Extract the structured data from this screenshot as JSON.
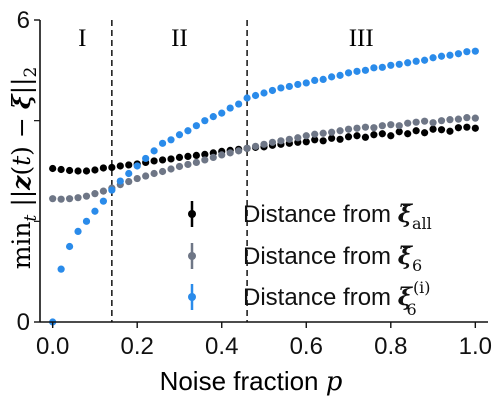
{
  "chart_data": {
    "type": "scatter",
    "xlabel": "Noise fraction",
    "xlabel_var": "p",
    "ylabel": "min_t ||z(t) − ξ||_2",
    "xlim": [
      -0.03,
      1.03
    ],
    "ylim": [
      0,
      6
    ],
    "xticks": [
      "0.0",
      "0.2",
      "0.4",
      "0.6",
      "0.8",
      "1.0"
    ],
    "xtick_values": [
      0,
      0.2,
      0.4,
      0.6,
      0.8,
      1.0
    ],
    "yticks": [
      "0",
      "6"
    ],
    "ytick_values": [
      0,
      6
    ],
    "yminor_ticks": [
      2,
      4
    ],
    "vlines": [
      0.14,
      0.46
    ],
    "regions": [
      "I",
      "II",
      "III"
    ],
    "region_centers": [
      0.07,
      0.3,
      0.73
    ],
    "legend_position": "center-right",
    "series": [
      {
        "name_base": "Distance from ",
        "name_sym": "ξ̄",
        "name_sub": "all",
        "name_sup": "",
        "color": "#000000",
        "x": [
          0,
          0.02,
          0.04,
          0.06,
          0.08,
          0.1,
          0.12,
          0.14,
          0.16,
          0.18,
          0.2,
          0.22,
          0.24,
          0.26,
          0.28,
          0.3,
          0.32,
          0.34,
          0.36,
          0.38,
          0.4,
          0.42,
          0.44,
          0.46,
          0.48,
          0.5,
          0.52,
          0.54,
          0.56,
          0.58,
          0.6,
          0.62,
          0.64,
          0.66,
          0.68,
          0.7,
          0.72,
          0.74,
          0.76,
          0.78,
          0.8,
          0.82,
          0.84,
          0.86,
          0.88,
          0.9,
          0.92,
          0.94,
          0.96,
          0.98,
          1.0
        ],
        "y": [
          3.05,
          3.03,
          3.01,
          3.0,
          3.0,
          3.02,
          3.06,
          3.07,
          3.1,
          3.12,
          3.14,
          3.17,
          3.2,
          3.22,
          3.24,
          3.27,
          3.29,
          3.31,
          3.33,
          3.36,
          3.39,
          3.41,
          3.43,
          3.45,
          3.47,
          3.48,
          3.51,
          3.53,
          3.55,
          3.57,
          3.58,
          3.62,
          3.6,
          3.65,
          3.63,
          3.68,
          3.7,
          3.67,
          3.72,
          3.74,
          3.7,
          3.78,
          3.74,
          3.8,
          3.76,
          3.83,
          3.82,
          3.79,
          3.86,
          3.87,
          3.85
        ]
      },
      {
        "name_base": "Distance from ",
        "name_sym": "ξ̄",
        "name_sub": "6",
        "name_sup": "",
        "color": "#6e7686",
        "x": [
          0,
          0.02,
          0.04,
          0.06,
          0.08,
          0.1,
          0.12,
          0.14,
          0.16,
          0.18,
          0.2,
          0.22,
          0.24,
          0.26,
          0.28,
          0.3,
          0.32,
          0.34,
          0.36,
          0.38,
          0.4,
          0.42,
          0.44,
          0.46,
          0.48,
          0.5,
          0.52,
          0.54,
          0.56,
          0.58,
          0.6,
          0.62,
          0.64,
          0.66,
          0.68,
          0.7,
          0.72,
          0.74,
          0.76,
          0.78,
          0.8,
          0.82,
          0.84,
          0.86,
          0.88,
          0.9,
          0.92,
          0.94,
          0.96,
          0.98,
          1.0
        ],
        "y": [
          2.45,
          2.44,
          2.45,
          2.47,
          2.5,
          2.55,
          2.6,
          2.66,
          2.73,
          2.79,
          2.85,
          2.9,
          2.95,
          2.99,
          3.04,
          3.09,
          3.13,
          3.17,
          3.22,
          3.27,
          3.32,
          3.36,
          3.4,
          3.45,
          3.49,
          3.53,
          3.57,
          3.6,
          3.63,
          3.66,
          3.7,
          3.73,
          3.75,
          3.77,
          3.8,
          3.83,
          3.85,
          3.87,
          3.86,
          3.9,
          3.92,
          3.9,
          3.95,
          3.97,
          3.99,
          3.96,
          4.0,
          4.02,
          4.03,
          4.06,
          4.05
        ]
      },
      {
        "name_base": "Distance from ",
        "name_sym": "ξ",
        "name_sub": "6",
        "name_sup": "(i)",
        "color": "#2a8bea",
        "x": [
          0,
          0.02,
          0.04,
          0.06,
          0.08,
          0.1,
          0.12,
          0.14,
          0.16,
          0.18,
          0.2,
          0.22,
          0.24,
          0.26,
          0.28,
          0.3,
          0.32,
          0.34,
          0.36,
          0.38,
          0.4,
          0.42,
          0.44,
          0.46,
          0.48,
          0.5,
          0.52,
          0.54,
          0.56,
          0.58,
          0.6,
          0.62,
          0.64,
          0.66,
          0.68,
          0.7,
          0.72,
          0.74,
          0.76,
          0.78,
          0.8,
          0.82,
          0.84,
          0.86,
          0.88,
          0.9,
          0.92,
          0.94,
          0.96,
          0.98,
          1.0
        ],
        "y": [
          0.0,
          1.05,
          1.5,
          1.8,
          2.0,
          2.2,
          2.4,
          2.62,
          2.8,
          2.95,
          3.1,
          3.25,
          3.4,
          3.55,
          3.62,
          3.72,
          3.8,
          3.9,
          4.0,
          4.08,
          4.15,
          4.25,
          4.33,
          4.45,
          4.5,
          4.55,
          4.6,
          4.65,
          4.68,
          4.72,
          4.75,
          4.8,
          4.82,
          4.87,
          4.9,
          4.95,
          4.98,
          5.0,
          5.05,
          5.06,
          5.1,
          5.12,
          5.15,
          5.18,
          5.2,
          5.25,
          5.28,
          5.3,
          5.33,
          5.37,
          5.38
        ]
      }
    ]
  }
}
